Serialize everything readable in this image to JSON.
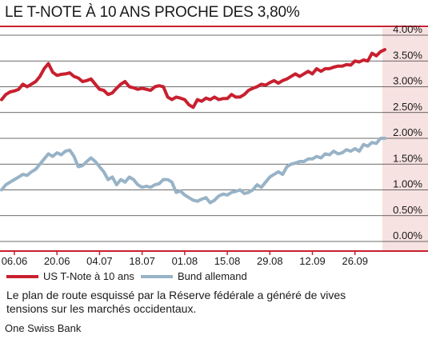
{
  "title": "LE T-NOTE À 10 ANS PROCHE DES 3,80%",
  "caption": "Le plan de route esquissé par la Réserve fédérale a généré de vives tensions sur les marchés occidentaux.",
  "source": "One Swiss Bank",
  "colors": {
    "us": "#c8202f",
    "bund": "#98b3c7",
    "band": "#f6e2e0",
    "rule": "#c8202f"
  },
  "chart_data": {
    "type": "line",
    "title": "LE T-NOTE À 10 ANS PROCHE DES 3,80%",
    "xlabel": "",
    "ylabel": "",
    "ylim": [
      0,
      4
    ],
    "yticks": [
      4.0,
      3.5,
      3.0,
      2.5,
      2.0,
      1.5,
      1.0,
      0.5,
      0.0
    ],
    "ytick_labels": [
      "4.00%",
      "3.50%",
      "3.00%",
      "2.50%",
      "2.00%",
      "1.50%",
      "1.00%",
      "0.50%",
      "0.00%"
    ],
    "xtick_labels": [
      "06.06",
      "20.06",
      "04.07",
      "18.07",
      "01.08",
      "15.08",
      "29.08",
      "12.09",
      "26.09"
    ],
    "xtick_index": [
      3,
      13,
      23,
      33,
      43,
      53,
      63,
      73,
      83
    ],
    "x_count": 91,
    "grid": true,
    "legend_position": "bottom",
    "series": [
      {
        "name": "US T-Note à 10 ans",
        "values": [
          2.75,
          2.85,
          2.9,
          2.92,
          2.95,
          3.05,
          3.0,
          3.05,
          3.1,
          3.2,
          3.35,
          3.45,
          3.28,
          3.22,
          3.24,
          3.25,
          3.27,
          3.2,
          3.17,
          3.1,
          3.12,
          3.15,
          3.05,
          2.95,
          2.93,
          2.85,
          2.88,
          2.97,
          3.05,
          3.1,
          3.0,
          2.98,
          2.95,
          2.97,
          2.95,
          2.93,
          3.0,
          3.02,
          3.0,
          2.8,
          2.75,
          2.8,
          2.78,
          2.75,
          2.65,
          2.6,
          2.75,
          2.72,
          2.78,
          2.75,
          2.8,
          2.75,
          2.77,
          2.77,
          2.85,
          2.8,
          2.8,
          2.85,
          2.93,
          2.97,
          3.0,
          3.05,
          3.03,
          3.08,
          3.12,
          3.07,
          3.12,
          3.15,
          3.2,
          3.25,
          3.2,
          3.25,
          3.3,
          3.25,
          3.35,
          3.3,
          3.35,
          3.35,
          3.38,
          3.4,
          3.4,
          3.43,
          3.42,
          3.5,
          3.48,
          3.52,
          3.5,
          3.65,
          3.6,
          3.68,
          3.72
        ]
      },
      {
        "name": "Bund allemand",
        "values": [
          1.0,
          1.1,
          1.15,
          1.2,
          1.25,
          1.3,
          1.28,
          1.35,
          1.4,
          1.5,
          1.6,
          1.7,
          1.65,
          1.72,
          1.68,
          1.75,
          1.77,
          1.65,
          1.45,
          1.47,
          1.55,
          1.62,
          1.55,
          1.45,
          1.35,
          1.2,
          1.25,
          1.1,
          1.2,
          1.15,
          1.25,
          1.2,
          1.1,
          1.05,
          1.07,
          1.05,
          1.1,
          1.12,
          1.2,
          1.2,
          1.15,
          0.95,
          0.98,
          0.9,
          0.85,
          0.8,
          0.78,
          0.82,
          0.85,
          0.75,
          0.8,
          0.88,
          0.92,
          0.9,
          0.95,
          0.97,
          1.0,
          0.93,
          0.95,
          1.0,
          1.1,
          1.05,
          1.15,
          1.25,
          1.3,
          1.35,
          1.3,
          1.45,
          1.5,
          1.52,
          1.55,
          1.55,
          1.6,
          1.6,
          1.65,
          1.62,
          1.7,
          1.68,
          1.75,
          1.7,
          1.72,
          1.78,
          1.75,
          1.8,
          1.75,
          1.88,
          1.85,
          1.92,
          1.9,
          2.0,
          2.0
        ]
      }
    ]
  }
}
